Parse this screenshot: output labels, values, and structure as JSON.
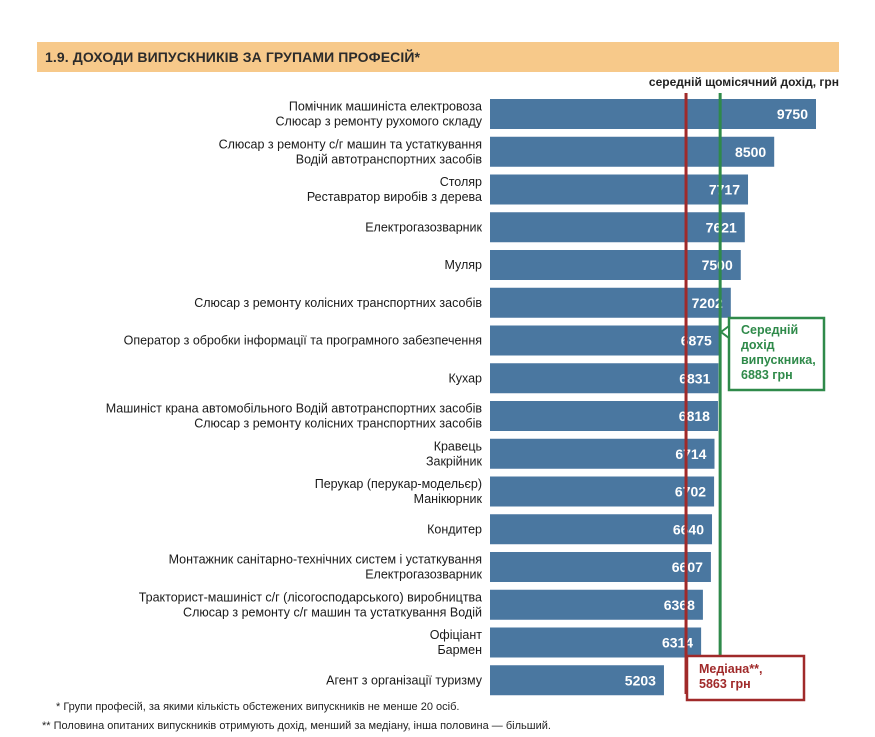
{
  "header": {
    "title": "1.9. ДОХОДИ ВИПУСКНИКІВ ЗА ГРУПАМИ ПРОФЕСІЙ*"
  },
  "chart_data": {
    "type": "bar",
    "orientation": "horizontal",
    "value_caption": "середній щомісячний дохід, грн",
    "categories": [
      [
        "Помічник машиніста електровоза",
        "Слюсар з ремонту рухомого складу"
      ],
      [
        "Слюсар з ремонту с/г машин та устаткування",
        "Водій автотранспортних засобів"
      ],
      [
        "Столяр",
        "Реставратор виробів з дерева"
      ],
      [
        "Електрогазозварник"
      ],
      [
        "Муляр"
      ],
      [
        "Слюсар з ремонту колісних транспортних засобів"
      ],
      [
        "Оператор з обробки інформації та програмного забезпечення"
      ],
      [
        "Кухар"
      ],
      [
        "Машиніст крана автомобільного Водій автотранспортних засобів",
        "Слюсар з ремонту колісних транспортних засобів"
      ],
      [
        "Кравець",
        "Закрійник"
      ],
      [
        "Перукар (перукар-модельєр)",
        "Манікюрник"
      ],
      [
        "Кондитер"
      ],
      [
        "Монтажник санітарно-технічних систем і устаткування",
        "Електрогазозварник"
      ],
      [
        "Тракторист-машиніст с/г (лісогосподарського) виробництва",
        "Слюсар з ремонту с/г машин та устаткування Водій"
      ],
      [
        "Офіціант",
        "Бармен"
      ],
      [
        "Агент з організації туризму"
      ]
    ],
    "values": [
      9750,
      8500,
      7717,
      7621,
      7500,
      7202,
      6875,
      6831,
      6818,
      6714,
      6702,
      6640,
      6607,
      6368,
      6314,
      5203
    ],
    "bar_color": "#4a77a0",
    "value_label_color": "#ffffff",
    "reference_lines": [
      {
        "value": 5863,
        "color": "#a02a2a",
        "label": [
          "Медіана**,",
          "5863 грн"
        ]
      },
      {
        "value": 6883,
        "color": "#2f8a4a",
        "label": [
          "Середній",
          "дохід",
          "випускника,",
          "6883 грн"
        ]
      }
    ]
  },
  "footnotes": {
    "f1": "* Групи професій, за якими кількість обстежених випускників не менше 20 осіб.",
    "f2": "** Половина опитаних випускників отримують дохід, менший за медіану, інша половина — більший."
  }
}
